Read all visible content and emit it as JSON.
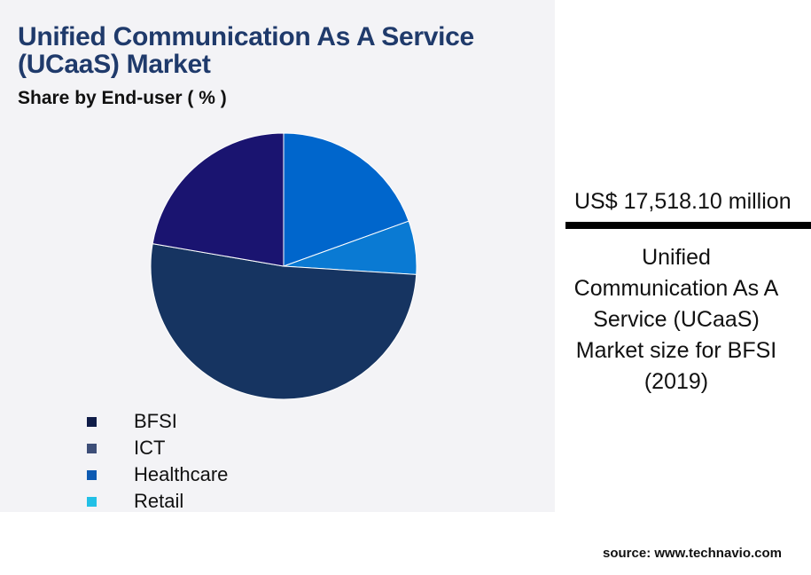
{
  "header": {
    "title": "Unified Communication As A Service (UCaaS) Market",
    "subtitle": "Share by End-user ( % )"
  },
  "kpi": {
    "value": "US$ 17,518.10 million",
    "label": "Unified Communication As A Service (UCaaS) Market size for BFSI (2019)"
  },
  "source": "source: www.technavio.com",
  "chart_data": {
    "type": "pie",
    "title": "Share by End-user ( % )",
    "categories": [
      "BFSI",
      "ICT",
      "Healthcare",
      "Retail"
    ],
    "values": [
      22.3,
      51.7,
      19.5,
      6.5
    ],
    "colors": [
      "#1a1470",
      "#163461",
      "#0066cc",
      "#0a7ad3"
    ],
    "legend_colors": [
      "#0f1c48",
      "#3d4e78",
      "#0d5ab2",
      "#22c0e6"
    ],
    "legend_position": "bottom-left",
    "start_angle_deg": 0,
    "order_from_top": [
      "Healthcare",
      "Retail",
      "ICT",
      "BFSI"
    ]
  }
}
